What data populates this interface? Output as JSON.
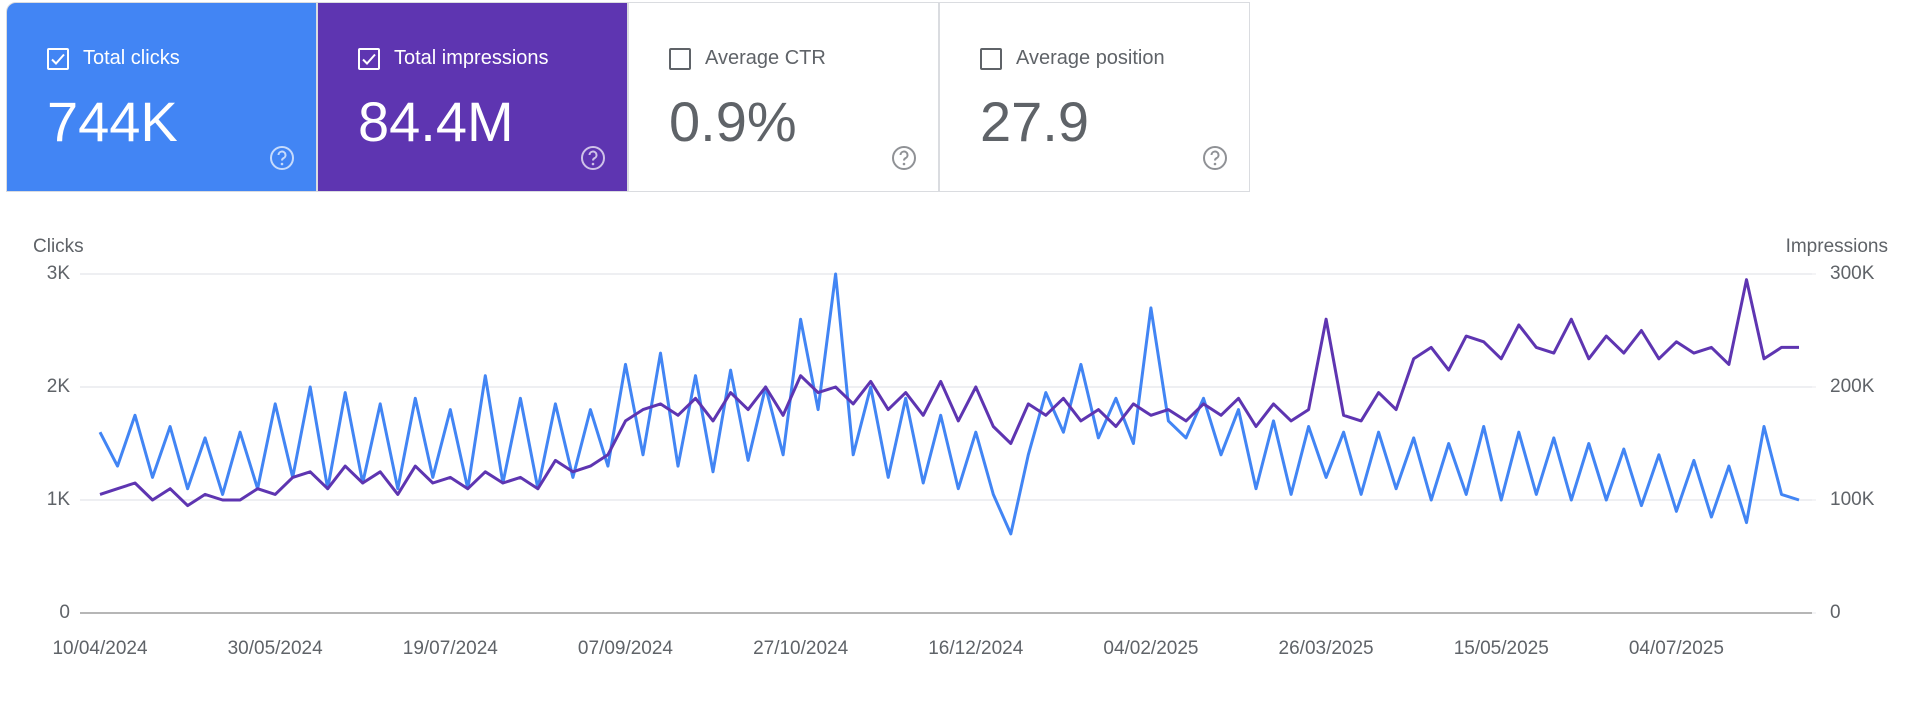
{
  "metrics": [
    {
      "label": "Total clicks",
      "value": "744K",
      "checked": true,
      "background": "#4285f4",
      "foreground": "#ffffff"
    },
    {
      "label": "Total impressions",
      "value": "84.4M",
      "checked": true,
      "background": "#5e35b1",
      "foreground": "#ffffff"
    },
    {
      "label": "Average CTR",
      "value": "0.9%",
      "checked": false,
      "background": "#ffffff",
      "foreground": "#5f6368"
    },
    {
      "label": "Average position",
      "value": "27.9",
      "checked": false,
      "background": "#ffffff",
      "foreground": "#5f6368"
    }
  ],
  "chart_data": {
    "type": "line",
    "ylabel": "Clicks",
    "y2label": "Impressions",
    "grid": true,
    "x": [
      "10/04/2024",
      "15/04/2024",
      "20/04/2024",
      "25/04/2024",
      "30/04/2024",
      "05/05/2024",
      "10/05/2024",
      "15/05/2024",
      "20/05/2024",
      "25/05/2024",
      "30/05/2024",
      "04/06/2024",
      "09/06/2024",
      "14/06/2024",
      "19/06/2024",
      "24/06/2024",
      "29/06/2024",
      "04/07/2024",
      "09/07/2024",
      "14/07/2024",
      "19/07/2024",
      "24/07/2024",
      "29/07/2024",
      "03/08/2024",
      "08/08/2024",
      "13/08/2024",
      "18/08/2024",
      "23/08/2024",
      "28/08/2024",
      "02/09/2024",
      "07/09/2024",
      "12/09/2024",
      "17/09/2024",
      "22/09/2024",
      "27/09/2024",
      "02/10/2024",
      "07/10/2024",
      "12/10/2024",
      "17/10/2024",
      "22/10/2024",
      "27/10/2024",
      "01/11/2024",
      "06/11/2024",
      "11/11/2024",
      "16/11/2024",
      "21/11/2024",
      "26/11/2024",
      "01/12/2024",
      "06/12/2024",
      "11/12/2024",
      "16/12/2024",
      "21/12/2024",
      "26/12/2024",
      "31/12/2024",
      "05/01/2025",
      "10/01/2025",
      "15/01/2025",
      "20/01/2025",
      "25/01/2025",
      "30/01/2025",
      "04/02/2025",
      "09/02/2025",
      "14/02/2025",
      "19/02/2025",
      "24/02/2025",
      "01/03/2025",
      "06/03/2025",
      "11/03/2025",
      "16/03/2025",
      "21/03/2025",
      "26/03/2025",
      "31/03/2025",
      "05/04/2025",
      "10/04/2025",
      "15/04/2025",
      "20/04/2025",
      "25/04/2025",
      "30/04/2025",
      "05/05/2025",
      "10/05/2025",
      "15/05/2025",
      "20/05/2025",
      "25/05/2025",
      "30/05/2025",
      "04/06/2025",
      "09/06/2025",
      "14/06/2025",
      "19/06/2025",
      "24/06/2025",
      "29/06/2025",
      "04/07/2025",
      "09/07/2025",
      "14/07/2025",
      "19/07/2025",
      "24/07/2025",
      "29/07/2025",
      "03/08/2025",
      "08/08/2025"
    ],
    "xlim": [
      "10/04/2024",
      "08/08/2025"
    ],
    "xticks": [
      "10/04/2024",
      "30/05/2024",
      "19/07/2024",
      "07/09/2024",
      "27/10/2024",
      "16/12/2024",
      "04/02/2025",
      "26/03/2025",
      "15/05/2025",
      "04/07/2025"
    ],
    "ylim": [
      0,
      3000
    ],
    "yticks": [
      0,
      {
        "value": 1000,
        "label": "1K"
      },
      {
        "value": 2000,
        "label": "2K"
      },
      {
        "value": 3000,
        "label": "3K"
      }
    ],
    "y2lim": [
      0,
      300000
    ],
    "y2ticks": [
      0,
      {
        "value": 100000,
        "label": "100K"
      },
      {
        "value": 200000,
        "label": "200K"
      },
      {
        "value": 300000,
        "label": "300K"
      }
    ],
    "series": [
      {
        "color": "#4285f4",
        "axis": "y",
        "values": [
          1600,
          1300,
          1750,
          1200,
          1650,
          1100,
          1550,
          1050,
          1600,
          1100,
          1850,
          1200,
          2000,
          1100,
          1950,
          1150,
          1850,
          1100,
          1900,
          1200,
          1800,
          1100,
          2100,
          1150,
          1900,
          1100,
          1850,
          1200,
          1800,
          1300,
          2200,
          1400,
          2300,
          1300,
          2100,
          1250,
          2150,
          1350,
          2000,
          1400,
          2600,
          1800,
          3000,
          1400,
          2000,
          1200,
          1900,
          1150,
          1750,
          1100,
          1600,
          1050,
          700,
          1400,
          1950,
          1600,
          2200,
          1550,
          1900,
          1500,
          2700,
          1700,
          1550,
          1900,
          1400,
          1800,
          1100,
          1700,
          1050,
          1650,
          1200,
          1600,
          1050,
          1600,
          1100,
          1550,
          1000,
          1500,
          1050,
          1650,
          1000,
          1600,
          1050,
          1550,
          1000,
          1500,
          1000,
          1450,
          950,
          1400,
          900,
          1350,
          850,
          1300,
          800,
          1650,
          1050,
          1000
        ]
      },
      {
        "color": "#5e35b1",
        "axis": "y2",
        "values": [
          105000,
          110000,
          115000,
          100000,
          110000,
          95000,
          105000,
          100000,
          100000,
          110000,
          105000,
          120000,
          125000,
          110000,
          130000,
          115000,
          125000,
          105000,
          130000,
          115000,
          120000,
          110000,
          125000,
          115000,
          120000,
          110000,
          135000,
          125000,
          130000,
          140000,
          170000,
          180000,
          185000,
          175000,
          190000,
          170000,
          195000,
          180000,
          200000,
          175000,
          210000,
          195000,
          200000,
          185000,
          205000,
          180000,
          195000,
          175000,
          205000,
          170000,
          200000,
          165000,
          150000,
          185000,
          175000,
          190000,
          170000,
          180000,
          165000,
          185000,
          175000,
          180000,
          170000,
          185000,
          175000,
          190000,
          165000,
          185000,
          170000,
          180000,
          260000,
          175000,
          170000,
          195000,
          180000,
          225000,
          235000,
          215000,
          245000,
          240000,
          225000,
          255000,
          235000,
          230000,
          260000,
          225000,
          245000,
          230000,
          250000,
          225000,
          240000,
          230000,
          235000,
          220000,
          295000,
          225000,
          235000,
          235000
        ]
      }
    ]
  }
}
